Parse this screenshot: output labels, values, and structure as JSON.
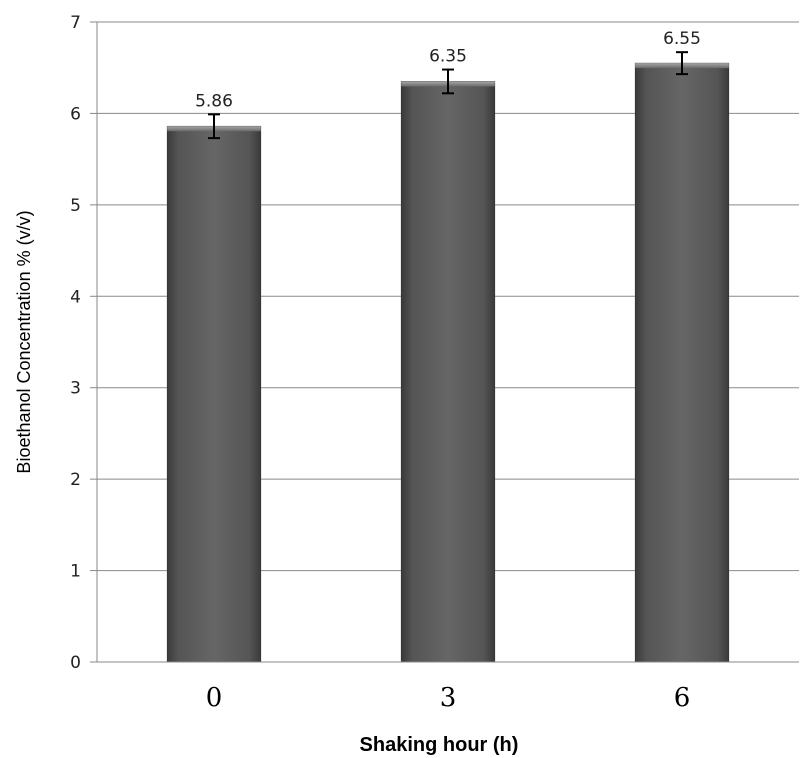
{
  "chart_data": {
    "type": "bar",
    "title": "",
    "xlabel": "Shaking hour (h)",
    "ylabel": "Bioethanol Concentration % (v/v)",
    "categories": [
      "0",
      "3",
      "6"
    ],
    "values": [
      5.86,
      6.35,
      6.55
    ],
    "data_labels": [
      "5.86",
      "6.35",
      "6.55"
    ],
    "error": [
      0.13,
      0.13,
      0.12
    ],
    "ylim": [
      0,
      7
    ],
    "yticks": [
      "0",
      "1",
      "2",
      "3",
      "4",
      "5",
      "6",
      "7"
    ],
    "grid": true,
    "legend": "none",
    "bar_color": "#585858"
  }
}
